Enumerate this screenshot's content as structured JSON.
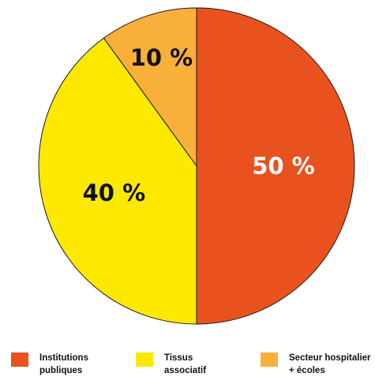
{
  "chart_data": {
    "type": "pie",
    "title": "",
    "slices": [
      {
        "label": "Institutions publiques",
        "label_lines": [
          "Institutions",
          "publiques"
        ],
        "value": 50,
        "display": "50 %",
        "color": "#e9521e",
        "text_color": "#ffffff"
      },
      {
        "label": "Tissus associatif",
        "label_lines": [
          "Tissus",
          "associatif"
        ],
        "value": 40,
        "display": "40 %",
        "color": "#fde800",
        "text_color": "#111111"
      },
      {
        "label": "Secteur hospitalier + écoles",
        "label_lines": [
          "Secteur hospitalier",
          "+ écoles"
        ],
        "value": 10,
        "display": "10 %",
        "color": "#f9b03a",
        "text_color": "#111111"
      }
    ],
    "start_angle_deg": 0,
    "direction": "clockwise",
    "legend_position": "bottom"
  }
}
